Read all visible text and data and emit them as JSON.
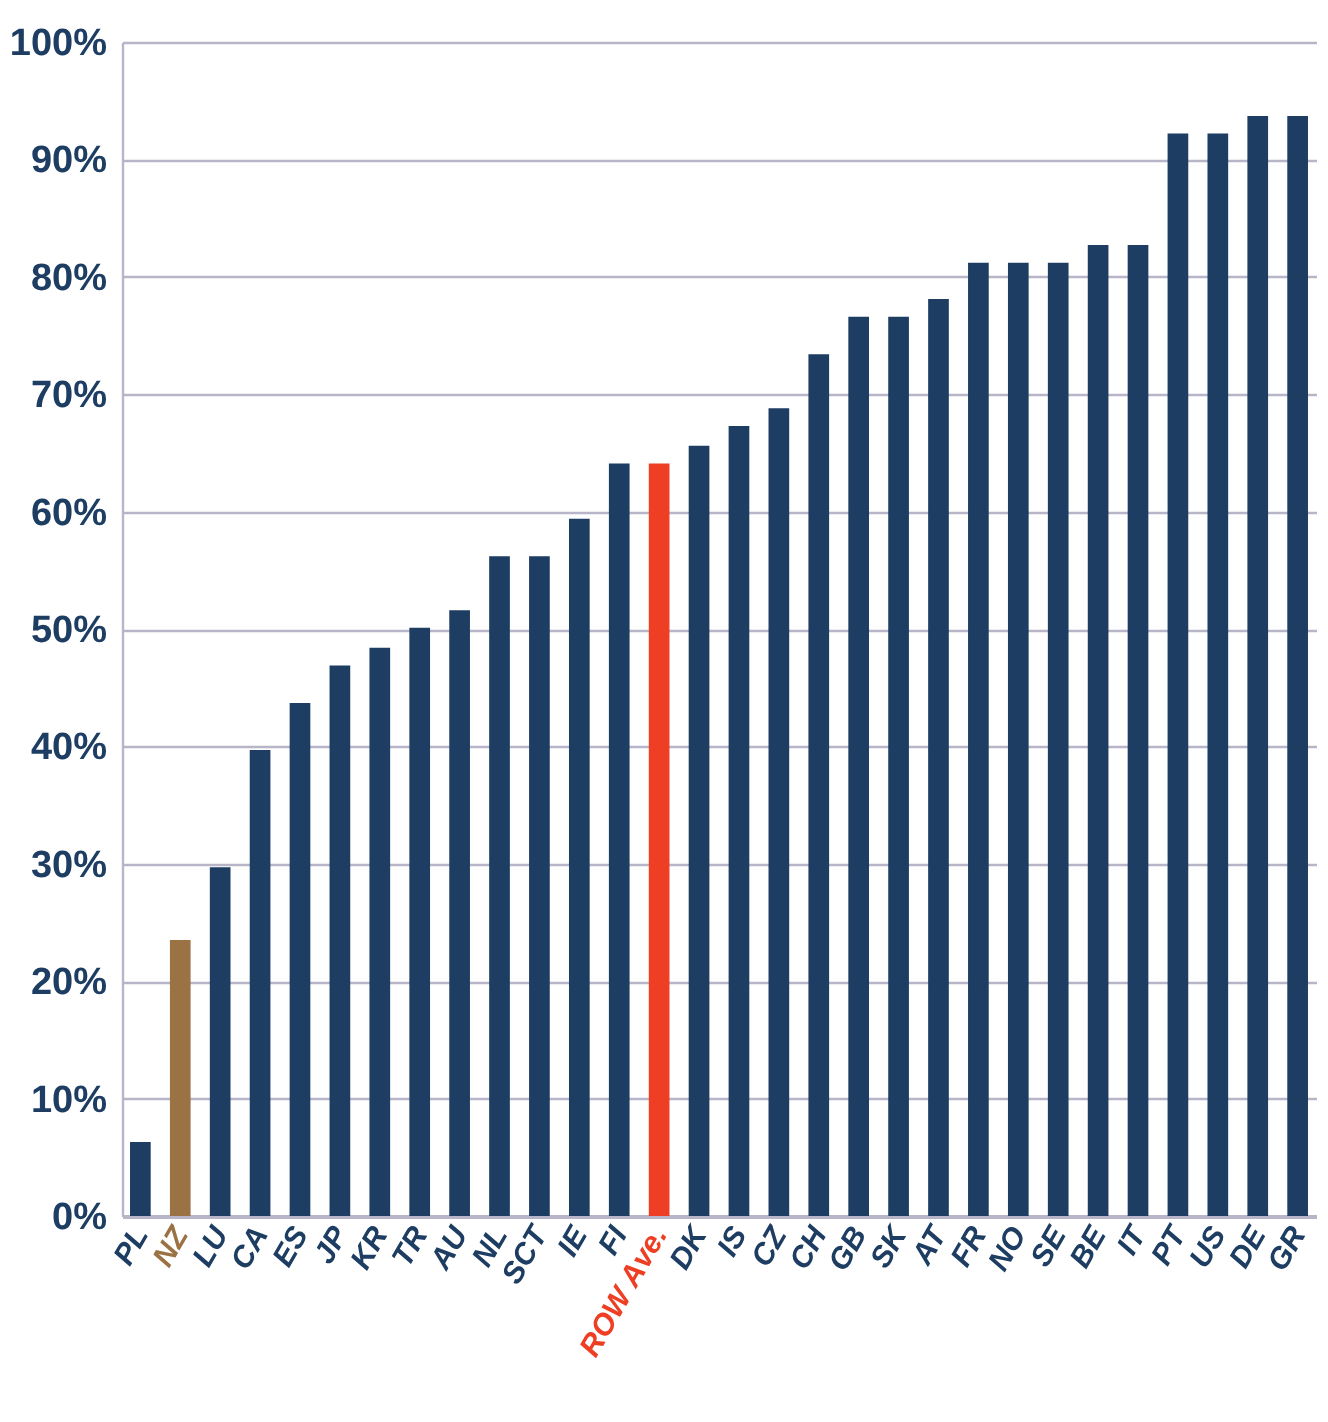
{
  "chart_data": {
    "type": "bar",
    "categories": [
      "PL",
      "NZ",
      "LU",
      "CA",
      "ES",
      "JP",
      "KR",
      "TR",
      "AU",
      "NL",
      "SCT",
      "IE",
      "FI",
      "ROW Ave.",
      "DK",
      "IS",
      "CZ",
      "CH",
      "GB",
      "SK",
      "AT",
      "FR",
      "NO",
      "SE",
      "BE",
      "IT",
      "PT",
      "US",
      "DE",
      "GR"
    ],
    "values": [
      6.3,
      23.5,
      29.7,
      39.7,
      43.7,
      46.9,
      48.4,
      50.1,
      51.6,
      56.2,
      56.2,
      59.4,
      64.1,
      64.1,
      65.6,
      67.3,
      68.8,
      73.4,
      76.6,
      76.6,
      78.1,
      81.2,
      81.2,
      81.2,
      82.7,
      82.7,
      92.2,
      92.2,
      93.7,
      93.7
    ],
    "colors": [
      "#1d3d62",
      "#9a7243",
      "#1d3d62",
      "#1d3d62",
      "#1d3d62",
      "#1d3d62",
      "#1d3d62",
      "#1d3d62",
      "#1d3d62",
      "#1d3d62",
      "#1d3d62",
      "#1d3d62",
      "#1d3d62",
      "#ee3e23",
      "#1d3d62",
      "#1d3d62",
      "#1d3d62",
      "#1d3d62",
      "#1d3d62",
      "#1d3d62",
      "#1d3d62",
      "#1d3d62",
      "#1d3d62",
      "#1d3d62",
      "#1d3d62",
      "#1d3d62",
      "#1d3d62",
      "#1d3d62",
      "#1d3d62",
      "#1d3d62"
    ],
    "ylim": [
      0,
      100
    ],
    "yticks": [
      {
        "value": 0,
        "label": "0%"
      },
      {
        "value": 10,
        "label": "10%"
      },
      {
        "value": 20,
        "label": "20%"
      },
      {
        "value": 30,
        "label": "30%"
      },
      {
        "value": 40,
        "label": "40%"
      },
      {
        "value": 50,
        "label": "50%"
      },
      {
        "value": 60,
        "label": "60%"
      },
      {
        "value": 70,
        "label": "70%"
      },
      {
        "value": 80,
        "label": "80%"
      },
      {
        "value": 90,
        "label": "90%"
      },
      {
        "value": 100,
        "label": "100%"
      }
    ],
    "grid": "y"
  }
}
